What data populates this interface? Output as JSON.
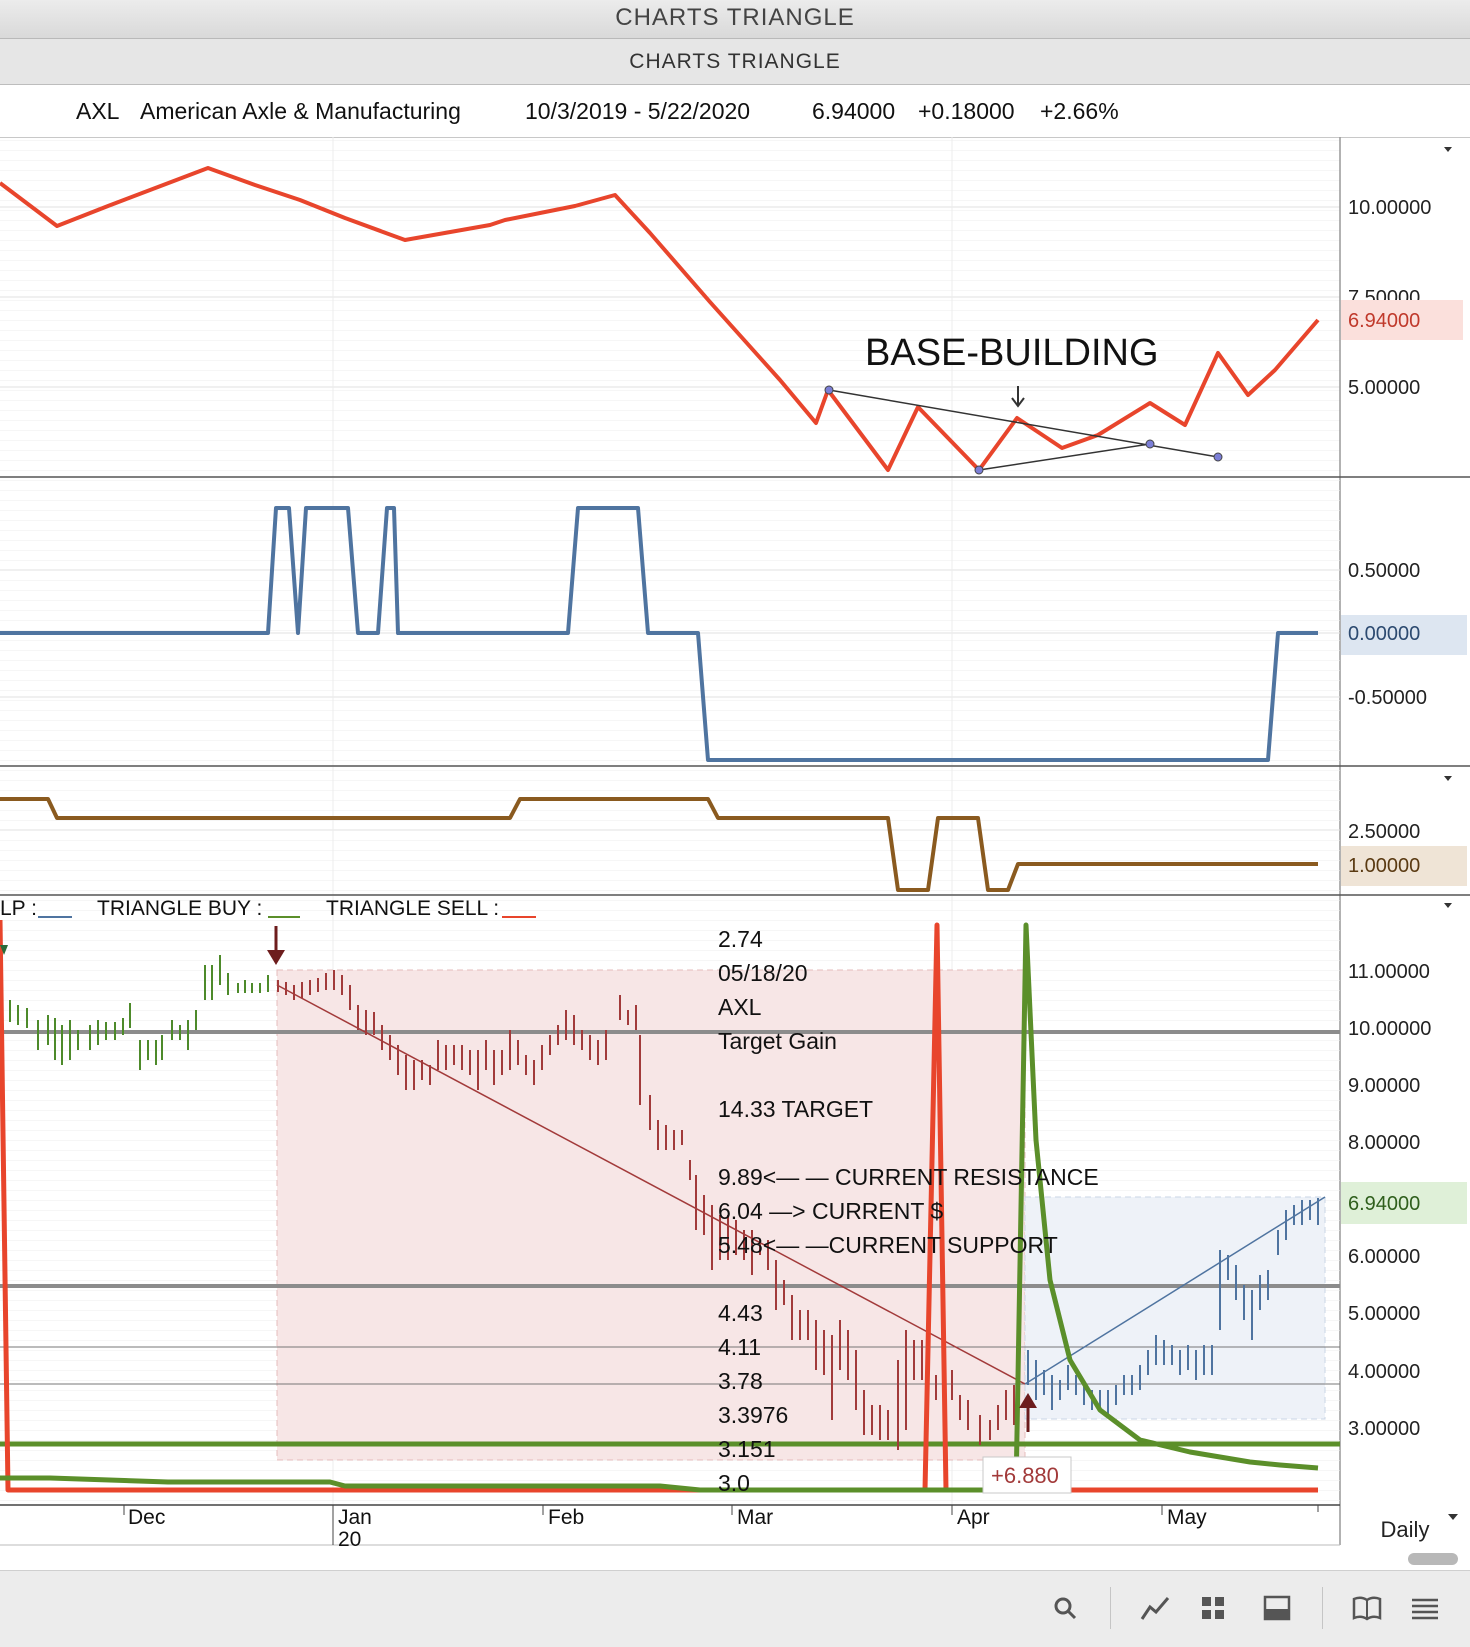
{
  "window": {
    "title": "CHARTS TRIANGLE",
    "subtitle": "CHARTS TRIANGLE"
  },
  "info": {
    "symbol": "AXL",
    "company": "American Axle & Manufacturing",
    "range": "10/3/2019 - 5/22/2020",
    "last": "6.94000",
    "change": "+0.18000",
    "change_pct": "+2.66%"
  },
  "panel1": {
    "axis_labels": [
      "10.00000",
      "7.50000",
      "5.00000"
    ],
    "current_label": "6.94000",
    "annotation": "BASE-BUILDING",
    "colors": {
      "line": "#e8452c",
      "current_bg": "#fbe0dc",
      "current_text": "#c0392b"
    }
  },
  "panel2": {
    "axis_labels": [
      "0.50000",
      "-0.50000"
    ],
    "current_label": "0.00000",
    "colors": {
      "line": "#4f74a0",
      "current_bg": "#dde6f1"
    }
  },
  "panel3": {
    "axis_labels": [
      "2.50000"
    ],
    "current_label": "1.00000",
    "colors": {
      "line": "#8a5a1f",
      "current_bg": "#efe4d6"
    }
  },
  "panel4": {
    "legend": {
      "lp": "LP :",
      "buy": "TRIANGLE BUY :",
      "sell": "TRIANGLE SELL :"
    },
    "axis_labels": [
      "11.00000",
      "10.00000",
      "9.00000",
      "8.00000",
      "6.00000",
      "5.00000",
      "4.00000",
      "3.00000"
    ],
    "current_label": "6.94000",
    "info_block": [
      "2.74",
      "05/18/20",
      "AXL",
      "Target Gain",
      "14.33 TARGET",
      "9.89<— — CURRENT RESISTANCE",
      "6.04 —> CURRENT $",
      "5.48<— —CURRENT SUPPORT"
    ],
    "levels": [
      "4.43",
      "4.11",
      "3.78",
      "3.3976",
      "3.151",
      "3.0"
    ],
    "gain_label": "+6.880",
    "colors": {
      "buy_line": "#5b8f2a",
      "sell_line": "#e8452c",
      "current_bg": "#dff0d8"
    }
  },
  "x_axis": {
    "months": [
      "Dec",
      "Jan",
      "Feb",
      "Mar",
      "Apr",
      "May"
    ],
    "year_label": "20",
    "interval": "Daily"
  },
  "toolbar": {
    "icons": [
      "search-icon",
      "draw-line-icon",
      "grid-icon",
      "panel-icon",
      "book-icon",
      "menu-icon"
    ]
  }
}
